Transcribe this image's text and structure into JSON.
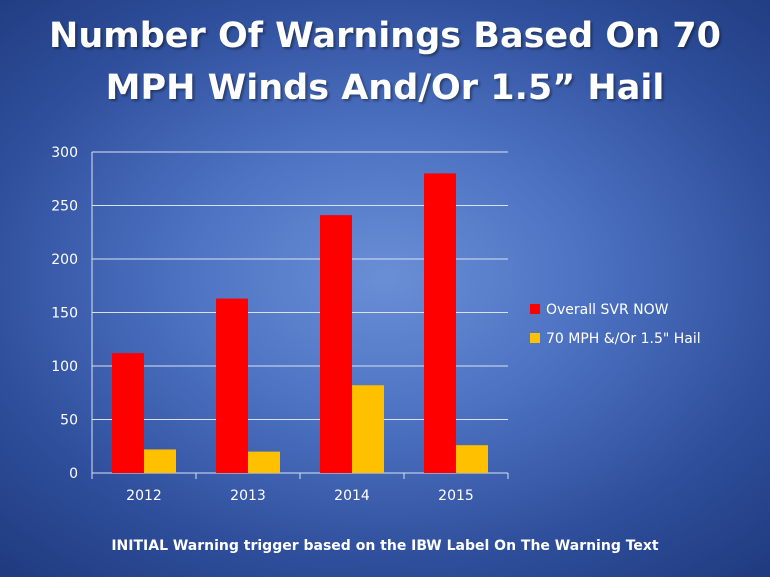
{
  "title": {
    "line1": "Number Of Warnings Based On 70",
    "line2": "MPH Winds And/Or 1.5” Hail"
  },
  "footer": "INITIAL Warning trigger based on the IBW Label On The Warning Text",
  "chart_data": {
    "type": "bar",
    "categories": [
      "2012",
      "2013",
      "2014",
      "2015"
    ],
    "series": [
      {
        "name": "Overall SVR NOW",
        "values": [
          112,
          163,
          241,
          280
        ],
        "color": "#ff0000"
      },
      {
        "name": "70 MPH &/Or 1.5\" Hail",
        "values": [
          22,
          20,
          82,
          26
        ],
        "color": "#ffc000"
      }
    ],
    "ylim": [
      0,
      300
    ],
    "yticks": [
      0,
      50,
      100,
      150,
      200,
      250,
      300
    ],
    "grid": true,
    "legend_position": "right"
  }
}
